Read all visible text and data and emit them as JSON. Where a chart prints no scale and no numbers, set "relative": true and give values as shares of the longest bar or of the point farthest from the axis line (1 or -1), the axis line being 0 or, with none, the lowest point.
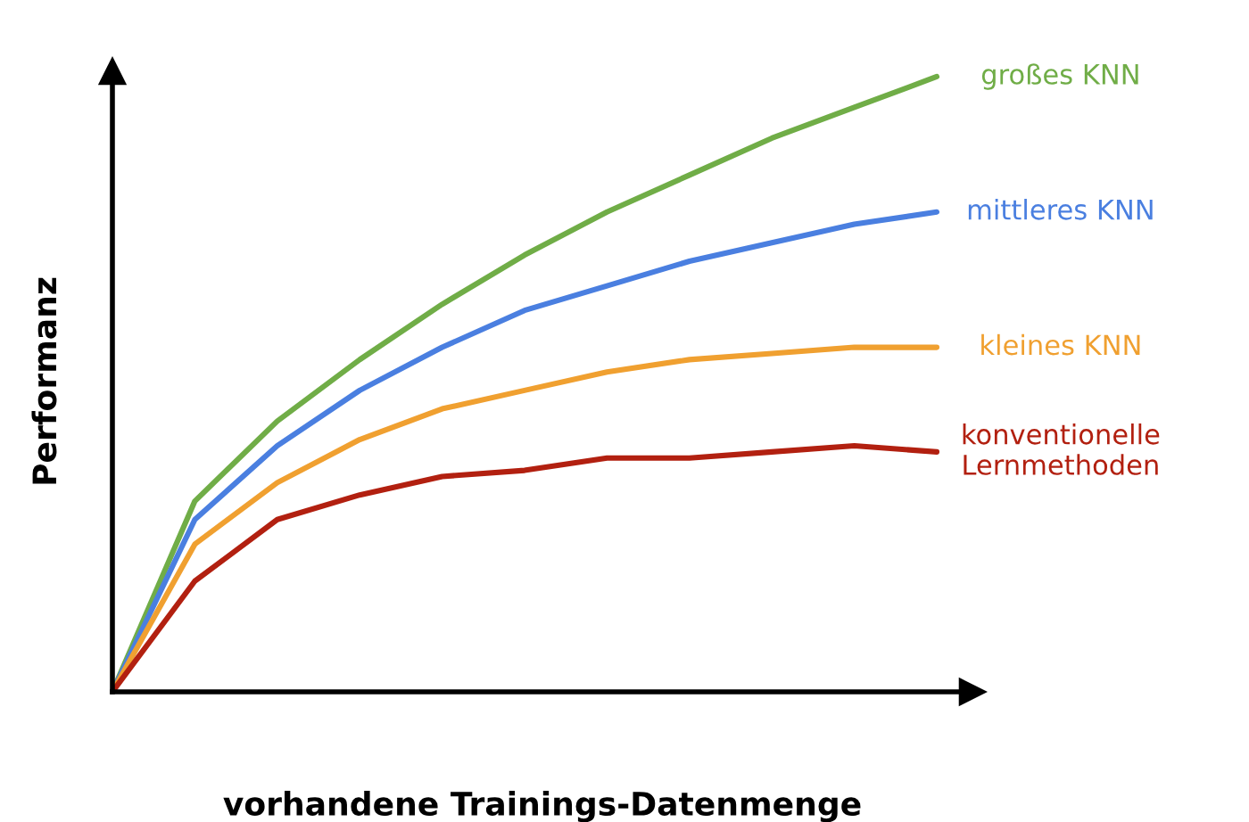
{
  "chart_data": {
    "type": "line",
    "relative": true,
    "xlabel": "vorhandene Trainings-Datenmenge",
    "ylabel": "Performanz",
    "legend": false,
    "marker": "none",
    "line_style": "solid",
    "categories": [
      null,
      null,
      null,
      null,
      null,
      null,
      null,
      null,
      null,
      null,
      null
    ],
    "series": [
      {
        "name": "großes KNN",
        "color": "#70ad47",
        "values": [
          0,
          0.31,
          0.44,
          0.54,
          0.63,
          0.71,
          0.78,
          0.84,
          0.9,
          0.95,
          1.0
        ]
      },
      {
        "name": "mittleres KNN",
        "color": "#4a7fe0",
        "values": [
          0,
          0.28,
          0.4,
          0.49,
          0.56,
          0.62,
          0.66,
          0.7,
          0.73,
          0.76,
          0.78
        ]
      },
      {
        "name": "kleines KNN",
        "color": "#f0a030",
        "values": [
          0,
          0.24,
          0.34,
          0.41,
          0.46,
          0.49,
          0.52,
          0.54,
          0.55,
          0.56,
          0.56
        ]
      },
      {
        "name": "konventionelle\nLernmethoden",
        "color": "#b22010",
        "values": [
          0,
          0.18,
          0.28,
          0.32,
          0.35,
          0.36,
          0.38,
          0.38,
          0.39,
          0.4,
          0.39
        ]
      }
    ]
  }
}
